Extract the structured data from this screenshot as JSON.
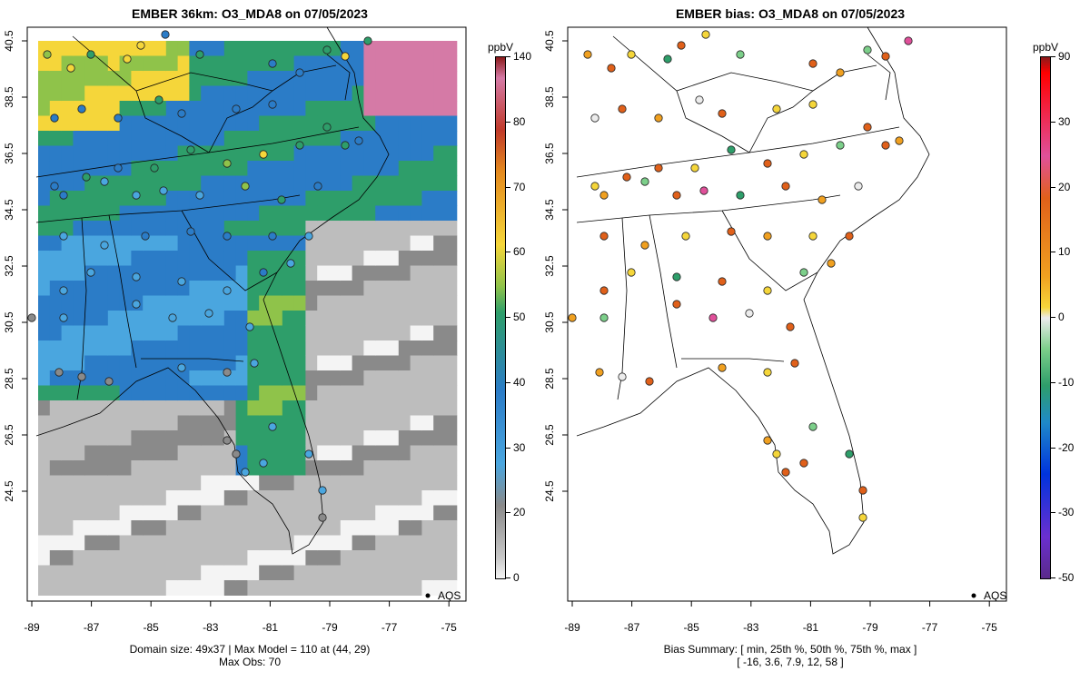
{
  "left": {
    "title": "EMBER 36km: O3_MDA8 on 07/05/2023",
    "footer_line1": "Domain size: 49x37 | Max Model = 110 at (44, 29)",
    "footer_line2": "Max Obs: 70",
    "legend_label": "AQS",
    "colorbar_unit": "ppbV",
    "colorbar_ticks": [
      "140",
      "80",
      "70",
      "60",
      "50",
      "40",
      "30",
      "20",
      "0"
    ]
  },
  "right": {
    "title": "EMBER bias: O3_MDA8 on 07/05/2023",
    "footer_line1": "Bias Summary: [ min, 25th %, 50th %, 75th %, max ]",
    "footer_line2": "[ -16,   3.6,   7.9,   12,   58 ]",
    "legend_label": "AQS",
    "colorbar_unit": "ppbV",
    "colorbar_ticks": [
      "90",
      "30",
      "20",
      "10",
      "0",
      "-10",
      "-20",
      "-30",
      "-50"
    ]
  },
  "axes": {
    "x_ticks": [
      "-89",
      "-87",
      "-85",
      "-83",
      "-81",
      "-79",
      "-77",
      "-75"
    ],
    "y_ticks": [
      "40.5",
      "38.5",
      "36.5",
      "34.5",
      "32.5",
      "30.5",
      "28.5",
      "26.5",
      "24.5"
    ]
  },
  "colors": {
    "ramp_high": "#8b1a1a",
    "ramp_mid": "#f5d63a",
    "ramp_green": "#2e9e6a",
    "ramp_blue": "#2b7cc7",
    "ramp_gray": "#aaaaaa"
  }
}
